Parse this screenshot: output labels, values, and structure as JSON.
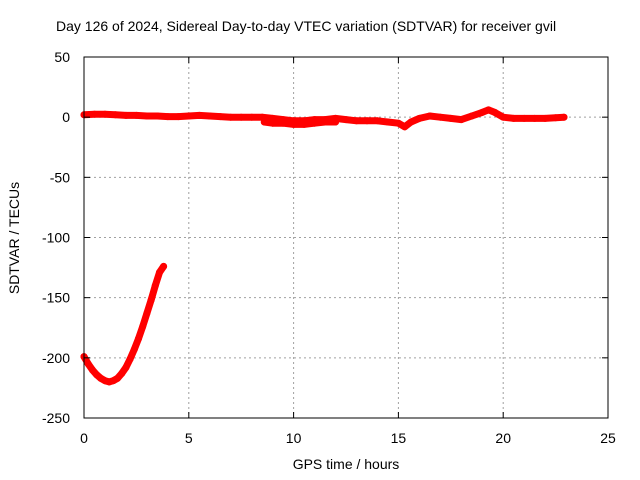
{
  "chart_data": {
    "type": "scatter",
    "title": "Day 126 of 2024, Sidereal Day-to-day VTEC variation (SDTVAR) for receiver gvil",
    "xlabel": "GPS time / hours",
    "ylabel": "SDTVAR / TECUs",
    "xlim": [
      0,
      25
    ],
    "ylim": [
      -250,
      50
    ],
    "xticks": [
      0,
      5,
      10,
      15,
      20,
      25
    ],
    "yticks": [
      -250,
      -200,
      -150,
      -100,
      -50,
      0,
      50
    ],
    "grid": true,
    "series": [
      {
        "color": "#ff0000",
        "segments": [
          {
            "x": [
              0.0,
              0.2,
              0.4,
              0.6,
              0.8,
              1.0,
              1.2,
              1.4,
              1.6,
              1.8,
              2.0,
              2.2,
              2.4,
              2.6,
              2.8,
              3.0,
              3.2,
              3.4,
              3.6,
              3.8
            ],
            "y": [
              -199,
              -205,
              -210,
              -214,
              -217,
              -219,
              -220,
              -219,
              -217,
              -213,
              -208,
              -201,
              -193,
              -184,
              -174,
              -163,
              -152,
              -140,
              -129,
              -124
            ]
          },
          {
            "x": [
              0.0,
              0.5,
              1.0,
              1.5,
              2.0,
              2.5,
              3.0,
              3.5,
              4.0,
              4.5,
              5.0,
              5.5,
              6.0,
              6.5,
              7.0,
              7.5,
              8.0,
              8.5,
              9.0,
              9.5,
              10.0,
              10.5,
              11.0,
              11.5,
              12.0,
              12.5,
              13.0,
              13.5,
              14.0,
              14.5,
              15.0,
              15.3,
              15.6,
              16.0,
              16.5,
              17.0,
              17.5,
              18.0,
              18.5,
              19.0,
              19.3,
              19.6,
              20.0,
              20.5,
              21.0,
              21.5,
              22.0,
              22.5,
              22.9
            ],
            "y": [
              2,
              2.5,
              2.5,
              2,
              1.5,
              1.5,
              1,
              1,
              0.5,
              0.5,
              1,
              1.5,
              1,
              0.5,
              0,
              0,
              0,
              0,
              -1,
              -2,
              -3,
              -3,
              -2,
              -2,
              -1,
              -2,
              -3,
              -3,
              -3,
              -4,
              -5,
              -8,
              -4,
              -1,
              1,
              0,
              -1,
              -2,
              1,
              4,
              6,
              4,
              0,
              -1,
              -1,
              -1,
              -1,
              -0.5,
              0
            ]
          },
          {
            "x": [
              8.6,
              9.0,
              9.5,
              10.0,
              10.5,
              11.0,
              11.5,
              12.0
            ],
            "y": [
              -4,
              -5,
              -5,
              -6,
              -6,
              -5,
              -4,
              -4
            ]
          }
        ]
      }
    ]
  }
}
